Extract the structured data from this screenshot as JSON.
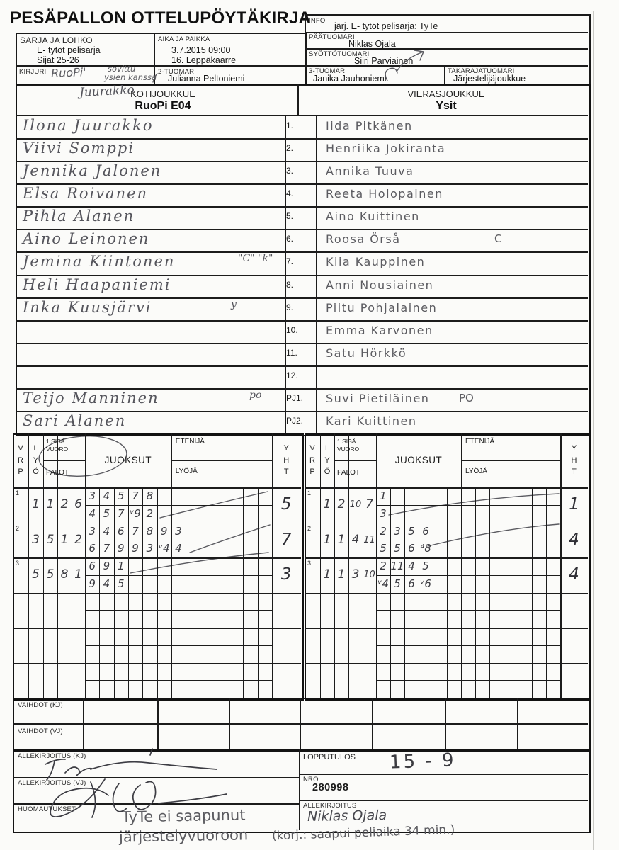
{
  "title": "PESÄPALLON OTTELUPÖYTÄKIRJA",
  "header": {
    "sarja_label": "SARJA JA LOHKO",
    "sarja_line1": "E- tytöt pelisarja",
    "sarja_line2": "Sijat 25-26",
    "aika_label": "AIKA JA PAIKKA",
    "aika_line1": "3.7.2015 09:00",
    "aika_line2": "16. Leppäkaarre",
    "kirjuri_label": "KIRJURI",
    "kirjuri_hw": "RuoPi'",
    "kirjuri_hw2": "sovittu",
    "kirjuri_hw3": "ysien kanssa",
    "kirjuri_hw4": "Juurakko",
    "tuomari2_label": "2-TUOMARI",
    "tuomari2": "Julianna Peltoniemi",
    "info_label": "INFO",
    "info": "järj. E- tytöt pelisarja: TyTe",
    "paatuomari_label": "PÄÄTUOMARI",
    "paatuomari": "Niklas Ojala",
    "syottotuomari_label": "SYÖTTÖTUOMARI",
    "syottotuomari": "Siiri Parviainen",
    "tuomari3_label": "3-TUOMARI",
    "tuomari3": "Janika Jauhoniemi",
    "takaraja_label": "TAKARAJATUOMARI",
    "takaraja": "Järjestelijäjoukkue"
  },
  "teams": {
    "home_label": "KOTIJOUKKUE",
    "home_name": "RuoPi E04",
    "away_label": "VIERASJOUKKUE",
    "away_name": "Ysit"
  },
  "roster": {
    "rows": [
      {
        "num": "1.",
        "home": "Ilona Juurakko",
        "away": "Iida Pitkänen"
      },
      {
        "num": "2.",
        "home": "Viivi Somppi",
        "away": "Henriika Jokiranta"
      },
      {
        "num": "3.",
        "home": "Jennika Jalonen",
        "away": "Annika Tuuva"
      },
      {
        "num": "4.",
        "home": "Elsa Roivanen",
        "away": "Reeta Holopainen"
      },
      {
        "num": "5.",
        "home": "Pihla Alanen",
        "away": "Aino Kuittinen"
      },
      {
        "num": "6.",
        "home": "Aino Leinonen",
        "away": "Roosa Örså",
        "away_note": "C"
      },
      {
        "num": "7.",
        "home": "Jemina Kiintonen",
        "home_note": "\"C\" \"k\"",
        "away": "Kiia Kauppinen"
      },
      {
        "num": "8.",
        "home": "Heli Haapaniemi",
        "away": "Anni Nousiainen"
      },
      {
        "num": "9.",
        "home": "Inka Kuusjärvi",
        "home_note": "y",
        "away": "Piitu Pohjalainen"
      },
      {
        "num": "10.",
        "home": "",
        "away": "Emma Karvonen"
      },
      {
        "num": "11.",
        "home": "",
        "away": "Satu Hörkkö"
      },
      {
        "num": "12.",
        "home": "",
        "away": ""
      },
      {
        "num": "PJ1.",
        "home": "Teijo Manninen",
        "home_note": "po",
        "away": "Suvi Pietiläinen",
        "away_note": "PO"
      },
      {
        "num": "PJ2.",
        "home": "Sari Alanen",
        "away": "Kari Kuittinen"
      }
    ]
  },
  "grid": {
    "header": {
      "vrp": "VRP",
      "lyo": "LYÖ",
      "sisa1": "1.SISÄ",
      "sisa2": "VUORO",
      "palot": "PALOT",
      "juoksut": "JUOKSUT",
      "etenija": "ETENIJÄ",
      "lyoja": "LYÖJÄ",
      "yht": "YHT"
    },
    "left": {
      "rows": [
        {
          "vrp": "1",
          "lyo": "1",
          "palot": [
            "1",
            "2",
            "6"
          ],
          "top": [
            "3",
            "4",
            "5",
            "7",
            "8"
          ],
          "bottom": [
            "4",
            "5",
            "7",
            "ᵛ9",
            "2"
          ],
          "yht": "5"
        },
        {
          "vrp": "2",
          "lyo": "3",
          "palot": [
            "5",
            "1",
            "2"
          ],
          "top": [
            "3",
            "4",
            "6",
            "7",
            "8",
            "9",
            "3"
          ],
          "bottom": [
            "6",
            "7",
            "9",
            "9",
            "3",
            "ᵛ4",
            "4"
          ],
          "yht": "7"
        },
        {
          "vrp": "3",
          "lyo": "5",
          "palot": [
            "5",
            "8",
            "1"
          ],
          "top": [
            "6",
            "9",
            "1"
          ],
          "bottom": [
            "9",
            "4",
            "5"
          ],
          "yht": "3"
        },
        {
          "vrp": "",
          "lyo": "",
          "palot": [
            "",
            "",
            ""
          ],
          "top": [],
          "bottom": [],
          "yht": ""
        },
        {
          "vrp": "",
          "lyo": "",
          "palot": [
            "",
            "",
            ""
          ],
          "top": [],
          "bottom": [],
          "yht": ""
        },
        {
          "vrp": "",
          "lyo": "",
          "palot": [
            "",
            "",
            ""
          ],
          "top": [],
          "bottom": [],
          "yht": ""
        }
      ]
    },
    "right": {
      "rows": [
        {
          "vrp": "1",
          "lyo": "1",
          "palot": [
            "2",
            "10",
            "7"
          ],
          "top": [
            "1"
          ],
          "bottom": [
            "3"
          ],
          "yht": "1"
        },
        {
          "vrp": "2",
          "lyo": "1",
          "palot": [
            "1",
            "4",
            "11"
          ],
          "top": [
            "2",
            "3",
            "5",
            "6"
          ],
          "bottom": [
            "5",
            "5",
            "6",
            "⁴8"
          ],
          "yht": "4"
        },
        {
          "vrp": "3",
          "lyo": "1",
          "palot": [
            "1",
            "3",
            "10"
          ],
          "top": [
            "2",
            "11",
            "4",
            "5"
          ],
          "bottom": [
            "ᵛ4",
            "5",
            "6",
            "ᵛ6"
          ],
          "yht": "4"
        },
        {
          "vrp": "",
          "lyo": "",
          "palot": [
            "",
            "",
            ""
          ],
          "top": [],
          "bottom": [],
          "yht": ""
        },
        {
          "vrp": "",
          "lyo": "",
          "palot": [
            "",
            "",
            ""
          ],
          "top": [],
          "bottom": [],
          "yht": ""
        },
        {
          "vrp": "",
          "lyo": "",
          "palot": [
            "",
            "",
            ""
          ],
          "top": [],
          "bottom": [],
          "yht": ""
        }
      ]
    }
  },
  "vaihdot": {
    "kj": "VAIHDOT (KJ)",
    "vj": "VAIHDOT (VJ)"
  },
  "bottom": {
    "allek_kj_label": "ALLEKIRJOITUS (KJ)",
    "allek_vj_label": "ALLEKIRJOITUS (VJ)",
    "huom_label": "HUOMAUTUKSET",
    "huom_line1": "TyTe ei saapunut",
    "huom_line2": "järjestelyvuoroon",
    "korjaus": "(korj.: saapui  peliaika 34 min.)",
    "lopputulos_label": "LOPPUTULOS",
    "lopputulos": "15 - 9",
    "nro_label": "NRO",
    "nro": "280998",
    "allek_label": "ALLEKIRJOITUS",
    "allek_value": "Niklas Ojala"
  }
}
